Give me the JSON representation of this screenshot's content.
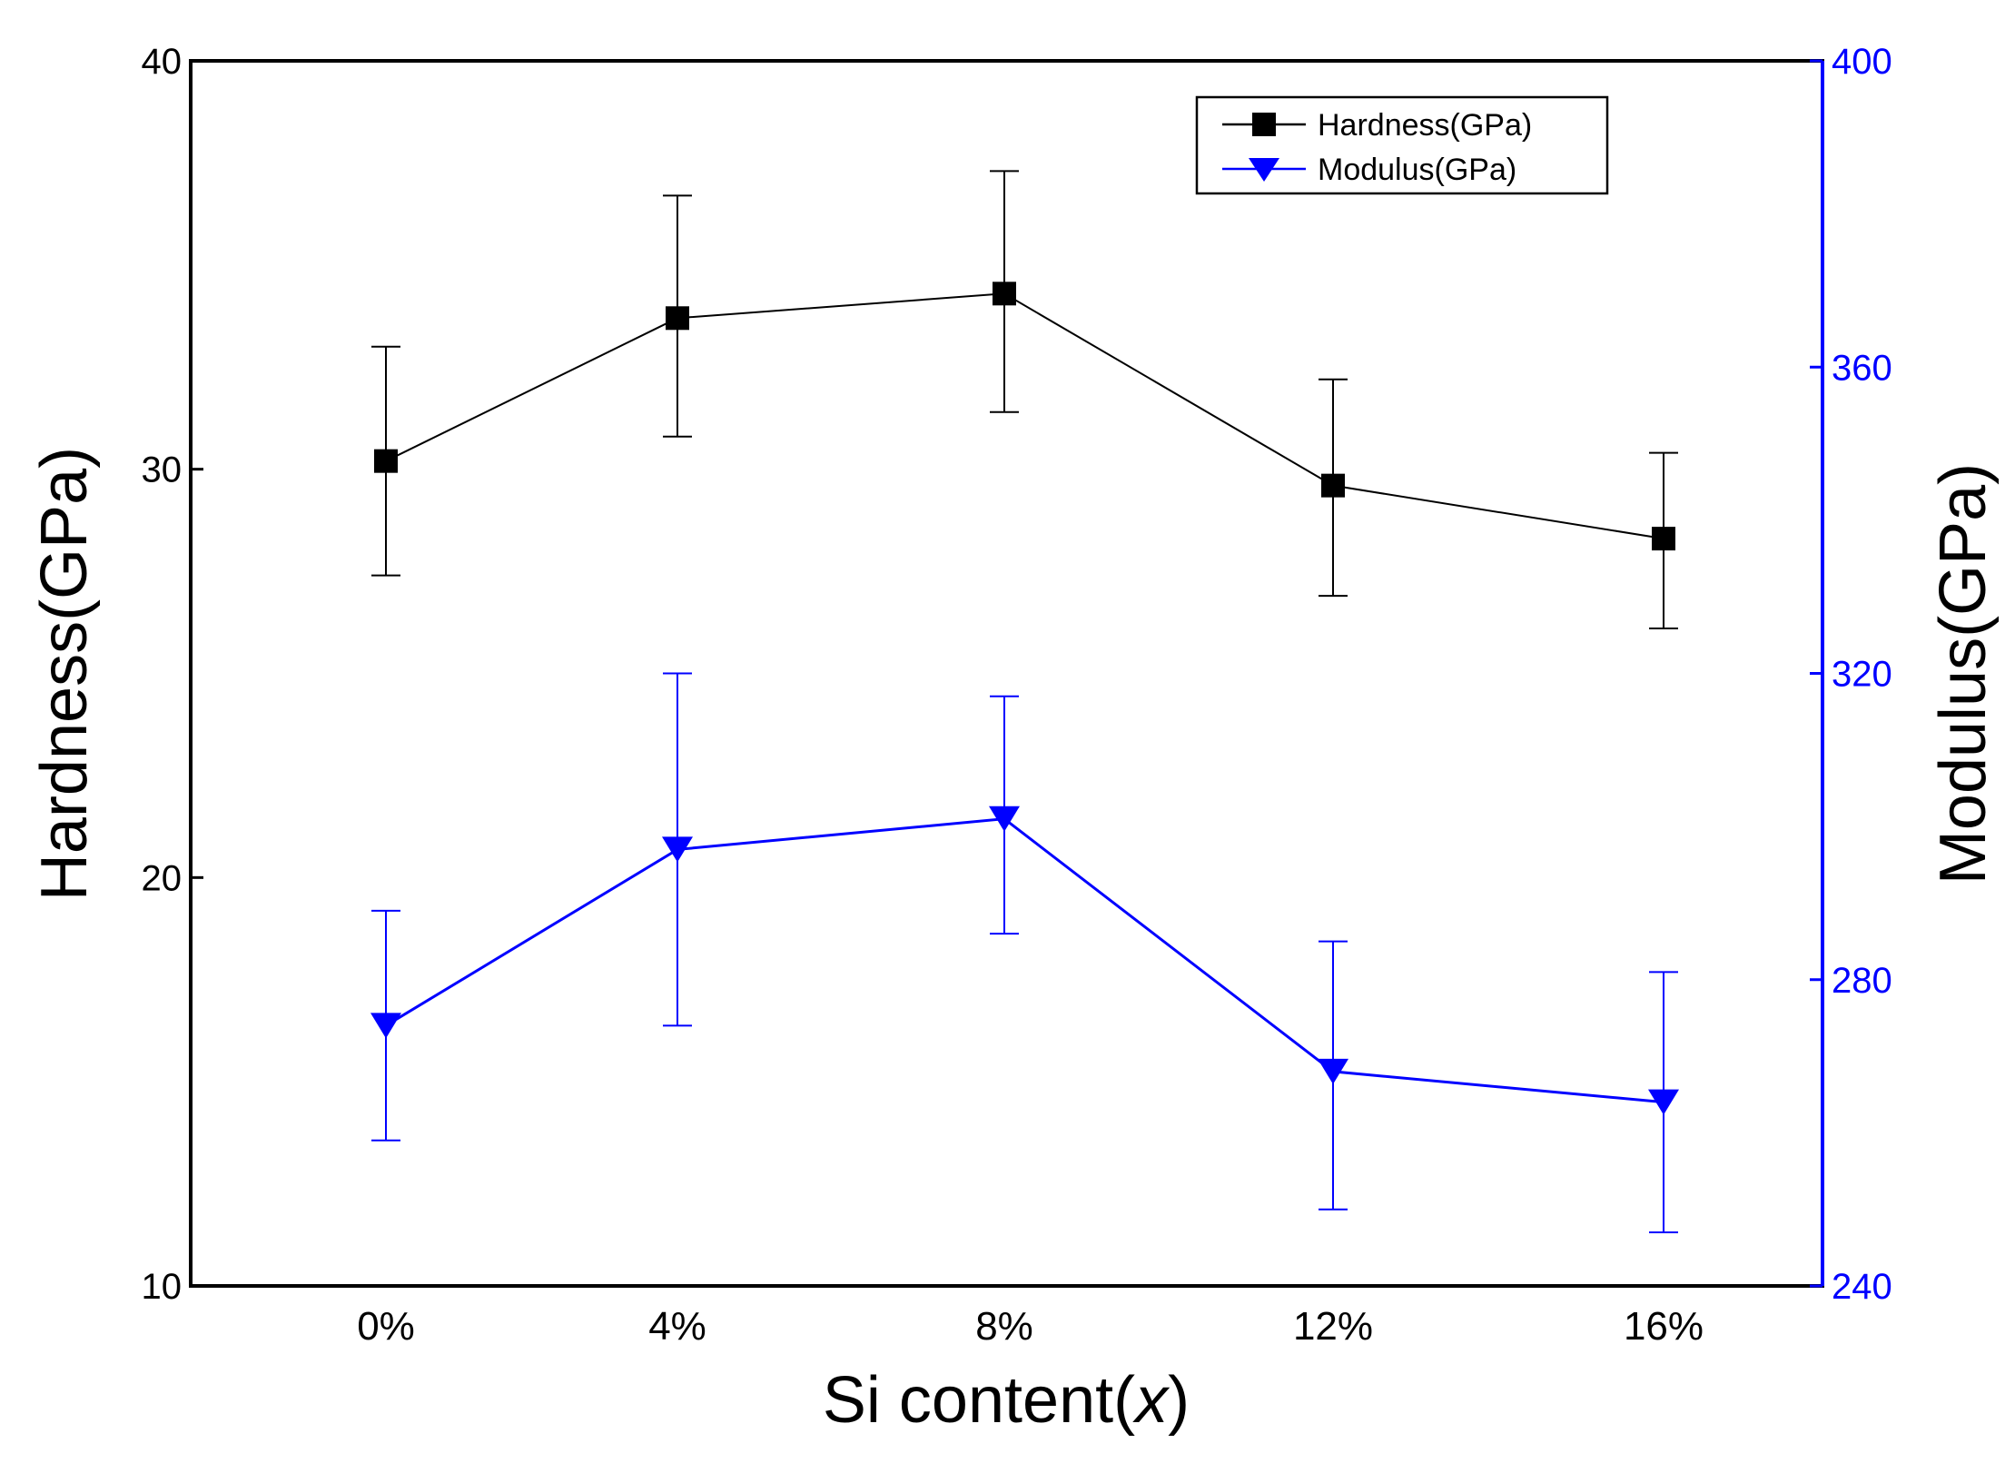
{
  "chart_data": {
    "type": "line",
    "title": "",
    "xlabel": "Si content(x)",
    "xlabel_prefix": "Si content(",
    "xlabel_var": "x",
    "xlabel_suffix": ")",
    "categories": [
      "0%",
      "4%",
      "8%",
      "12%",
      "16%"
    ],
    "y_left": {
      "label": "Hardness(GPa)",
      "range": [
        10,
        40
      ],
      "ticks": [
        "10",
        "20",
        "30",
        "40"
      ],
      "color": "#000000"
    },
    "y_right": {
      "label": "Modulus(GPa)",
      "range": [
        240,
        400
      ],
      "ticks": [
        "240",
        "280",
        "320",
        "360",
        "400"
      ],
      "color": "#0000ff"
    },
    "grid": false,
    "legend_position": "top-right",
    "series": [
      {
        "name": "Hardness(GPa)",
        "axis": "left",
        "marker": "square",
        "color": "#000000",
        "values": [
          30.2,
          33.7,
          34.3,
          29.6,
          28.3
        ],
        "error_low": [
          27.4,
          30.8,
          31.4,
          26.9,
          26.1
        ],
        "error_high": [
          33.0,
          36.7,
          37.3,
          32.2,
          30.4
        ]
      },
      {
        "name": "Modulus(GPa)",
        "axis": "right",
        "marker": "triangle-down",
        "color": "#0000ff",
        "values": [
          274,
          297,
          301,
          268,
          264
        ],
        "error_low": [
          259,
          274,
          286,
          250,
          247
        ],
        "error_high": [
          289,
          320,
          317,
          285,
          281
        ]
      }
    ]
  }
}
